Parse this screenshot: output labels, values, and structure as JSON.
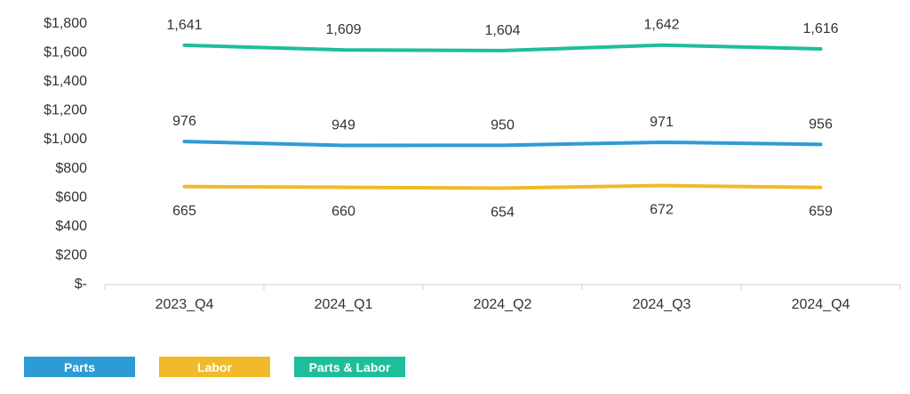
{
  "chart_data": {
    "type": "line",
    "categories": [
      "2023_Q4",
      "2024_Q1",
      "2024_Q2",
      "2024_Q3",
      "2024_Q4"
    ],
    "y_tick_labels": [
      "$-",
      "$200",
      "$400",
      "$600",
      "$800",
      "$1,000",
      "$1,200",
      "$1,400",
      "$1,600",
      "$1,800"
    ],
    "ylim": [
      0,
      1800
    ],
    "grid": false,
    "legend_position": "bottom-left",
    "series": [
      {
        "name": "Parts",
        "color": "#2E9BD6",
        "values": [
          976,
          949,
          950,
          971,
          956
        ],
        "labels": [
          "976",
          "949",
          "950",
          "971",
          "956"
        ]
      },
      {
        "name": "Labor",
        "color": "#F0BA2A",
        "values": [
          665,
          660,
          654,
          672,
          659
        ],
        "labels": [
          "665",
          "660",
          "654",
          "672",
          "659"
        ]
      },
      {
        "name": "Parts & Labor",
        "color": "#1FBE9A",
        "values": [
          1641,
          1609,
          1604,
          1642,
          1616
        ],
        "labels": [
          "1,641",
          "1,609",
          "1,604",
          "1,642",
          "1,616"
        ]
      }
    ]
  }
}
